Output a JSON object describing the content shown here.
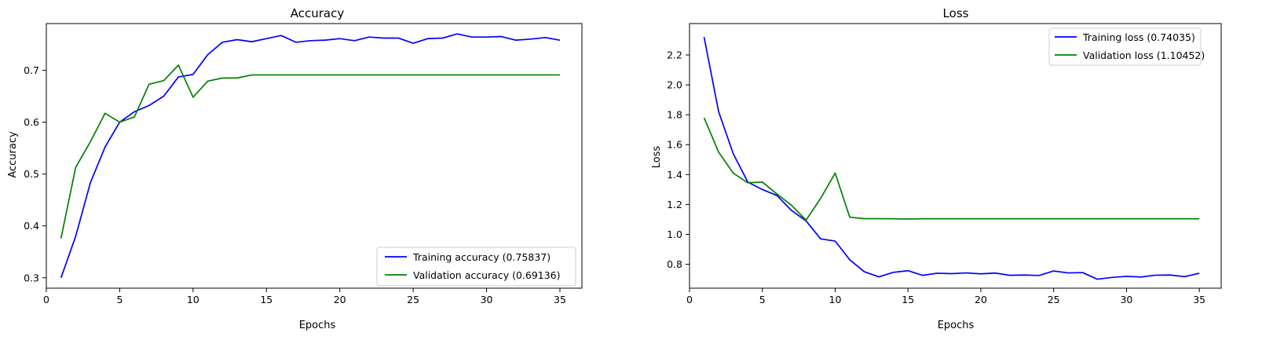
{
  "chart_data": [
    {
      "type": "line",
      "title": "Accuracy",
      "xlabel": "Epochs",
      "ylabel": "Accuracy",
      "xlim": [
        0,
        36.5
      ],
      "ylim": [
        0.28,
        0.79
      ],
      "xticks": [
        0,
        5,
        10,
        15,
        20,
        25,
        30,
        35
      ],
      "yticks": [
        0.3,
        0.4,
        0.5,
        0.6,
        0.7
      ],
      "grid": false,
      "legend_position": "lower-right",
      "x": [
        1,
        2,
        3,
        4,
        5,
        6,
        7,
        8,
        9,
        10,
        11,
        12,
        13,
        14,
        15,
        16,
        17,
        18,
        19,
        20,
        21,
        22,
        23,
        24,
        25,
        26,
        27,
        28,
        29,
        30,
        31,
        32,
        33,
        34,
        35
      ],
      "series": [
        {
          "name": "Training accuracy (0.75837)",
          "color": "#0000ff",
          "values": [
            0.3,
            0.38,
            0.483,
            0.552,
            0.6,
            0.62,
            0.632,
            0.65,
            0.687,
            0.692,
            0.73,
            0.754,
            0.759,
            0.755,
            0.761,
            0.767,
            0.754,
            0.757,
            0.758,
            0.761,
            0.757,
            0.764,
            0.762,
            0.762,
            0.752,
            0.761,
            0.762,
            0.77,
            0.764,
            0.764,
            0.765,
            0.758,
            0.76,
            0.763,
            0.758
          ]
        },
        {
          "name": "Validation accuracy (0.69136)",
          "color": "#008000",
          "values": [
            0.376,
            0.513,
            0.562,
            0.617,
            0.6,
            0.61,
            0.673,
            0.68,
            0.71,
            0.648,
            0.679,
            0.685,
            0.685,
            0.691,
            0.691,
            0.691,
            0.691,
            0.691,
            0.691,
            0.691,
            0.691,
            0.691,
            0.691,
            0.691,
            0.691,
            0.691,
            0.691,
            0.691,
            0.691,
            0.691,
            0.691,
            0.691,
            0.691,
            0.691,
            0.691
          ]
        }
      ]
    },
    {
      "type": "line",
      "title": "Loss",
      "xlabel": "Epochs",
      "ylabel": "Loss",
      "xlim": [
        0,
        36.5
      ],
      "ylim": [
        0.64,
        2.41
      ],
      "xticks": [
        0,
        5,
        10,
        15,
        20,
        25,
        30,
        35
      ],
      "yticks": [
        0.8,
        1.0,
        1.2,
        1.4,
        1.6,
        1.8,
        2.0,
        2.2
      ],
      "grid": false,
      "legend_position": "upper-right",
      "x": [
        1,
        2,
        3,
        4,
        5,
        6,
        7,
        8,
        9,
        10,
        11,
        12,
        13,
        14,
        15,
        16,
        17,
        18,
        19,
        20,
        21,
        22,
        23,
        24,
        25,
        26,
        27,
        28,
        29,
        30,
        31,
        32,
        33,
        34,
        35
      ],
      "series": [
        {
          "name": "Training loss (0.74035)",
          "color": "#0000ff",
          "values": [
            2.32,
            1.82,
            1.54,
            1.35,
            1.3,
            1.26,
            1.16,
            1.09,
            0.97,
            0.955,
            0.83,
            0.75,
            0.716,
            0.746,
            0.757,
            0.726,
            0.74,
            0.737,
            0.742,
            0.736,
            0.741,
            0.726,
            0.728,
            0.725,
            0.755,
            0.742,
            0.744,
            0.7,
            0.712,
            0.719,
            0.715,
            0.727,
            0.728,
            0.717,
            0.74
          ]
        },
        {
          "name": "Validation loss (1.10452)",
          "color": "#008000",
          "values": [
            1.78,
            1.55,
            1.41,
            1.345,
            1.35,
            1.27,
            1.195,
            1.095,
            1.24,
            1.41,
            1.115,
            1.105,
            1.105,
            1.104,
            1.103,
            1.104,
            1.104,
            1.104,
            1.104,
            1.104,
            1.104,
            1.104,
            1.104,
            1.104,
            1.104,
            1.104,
            1.104,
            1.104,
            1.104,
            1.104,
            1.104,
            1.104,
            1.104,
            1.104,
            1.104
          ]
        }
      ]
    }
  ]
}
